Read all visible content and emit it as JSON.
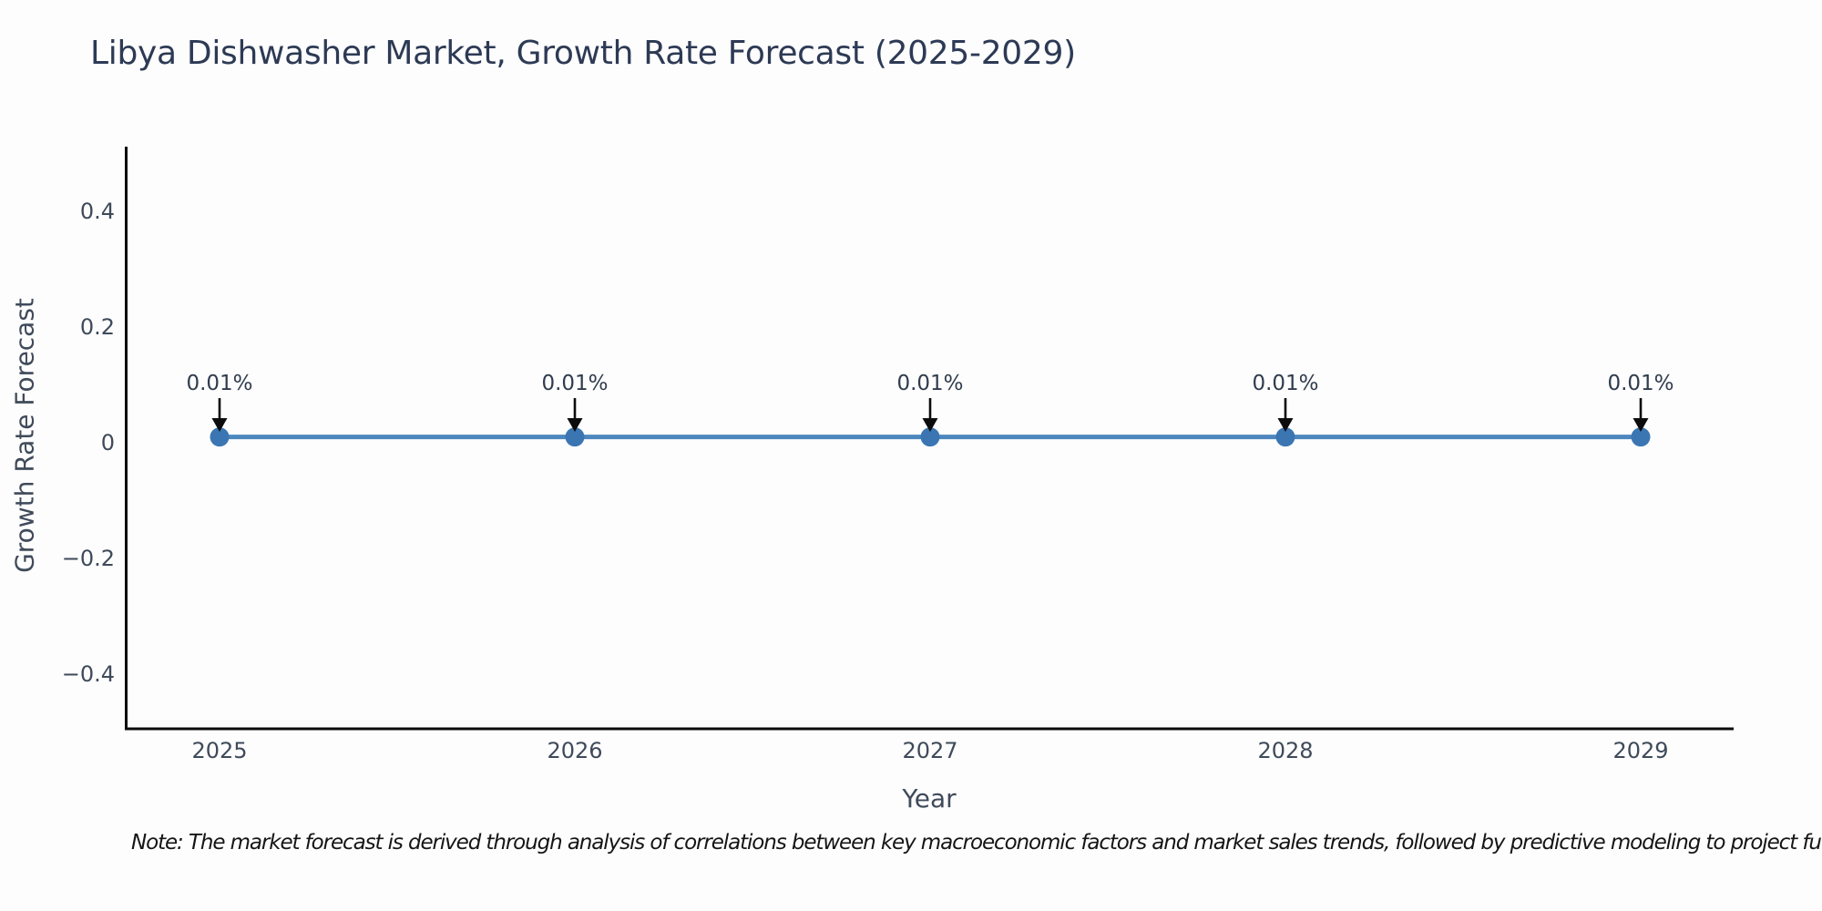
{
  "chart_data": {
    "type": "line",
    "title": "Libya Dishwasher Market, Growth Rate Forecast (2025-2029)",
    "xlabel": "Year",
    "ylabel": "Growth Rate Forecast",
    "x": [
      2025,
      2026,
      2027,
      2028,
      2029
    ],
    "series": [
      {
        "name": "Growth Rate Forecast",
        "values": [
          0.01,
          0.01,
          0.01,
          0.01,
          0.01
        ]
      }
    ],
    "point_labels": [
      "0.01%",
      "0.01%",
      "0.01%",
      "0.01%",
      "0.01%"
    ],
    "y_ticks": [
      {
        "label": "0.4",
        "value": 0.4
      },
      {
        "label": "0.2",
        "value": 0.2
      },
      {
        "label": "0",
        "value": 0
      },
      {
        "label": "−0.2",
        "value": -0.2
      },
      {
        "label": "−0.4",
        "value": -0.4
      }
    ],
    "ylim": [
      -0.5,
      0.5
    ],
    "grid": false,
    "legend": "none",
    "annotation_style": "value label above point with downward black arrow",
    "note": "Note: The market forecast is derived through analysis of correlations between key macroeconomic factors and market sales trends, followed by predictive modeling to project future sales.",
    "colors": {
      "line": "#4d87be",
      "marker": "#3b76b3",
      "arrow": "#0c0c0c",
      "axis_spine": "#0a0a0a",
      "title_text": "#2d3a55",
      "tick_text": "#3f4a5a",
      "annotation_text": "#303c4e",
      "note_text": "#151515",
      "background": "#fdfdfd"
    }
  }
}
